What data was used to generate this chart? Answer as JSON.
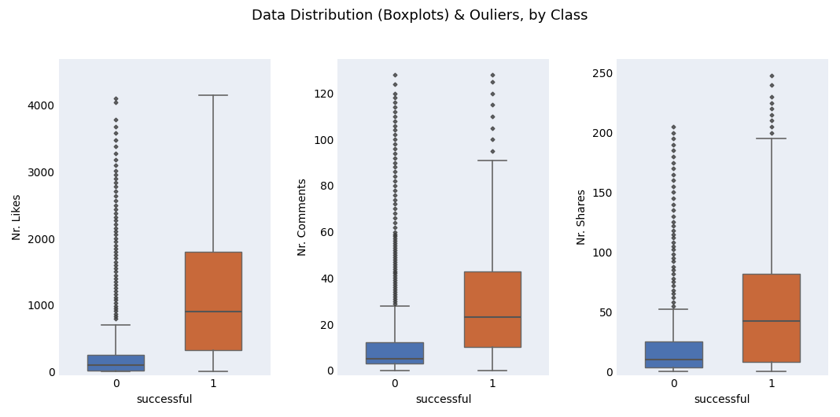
{
  "title": "Data Distribution (Boxplots) & Ouliers, by Class",
  "subplots": [
    {
      "ylabel": "Nr. Likes",
      "xlabel": "successful",
      "ylim": [
        -50,
        4700
      ],
      "yticks": [
        0,
        1000,
        2000,
        3000,
        4000
      ],
      "class0": {
        "q1": 20,
        "median": 100,
        "q3": 250,
        "whislo": 0,
        "whishi": 700,
        "fliers": [
          800,
          830,
          870,
          910,
          950,
          990,
          1030,
          1080,
          1120,
          1160,
          1210,
          1260,
          1300,
          1350,
          1400,
          1450,
          1500,
          1550,
          1600,
          1650,
          1700,
          1750,
          1800,
          1850,
          1900,
          1950,
          2000,
          2060,
          2110,
          2160,
          2210,
          2270,
          2320,
          2380,
          2440,
          2500,
          2570,
          2640,
          2710,
          2780,
          2840,
          2900,
          2960,
          3020,
          3100,
          3180,
          3280,
          3380,
          3480,
          3580,
          3680,
          3780,
          4050,
          4100
        ]
      },
      "class1": {
        "q1": 320,
        "median": 900,
        "q3": 1800,
        "whislo": 0,
        "whishi": 4150,
        "fliers": []
      }
    },
    {
      "ylabel": "Nr. Comments",
      "xlabel": "successful",
      "ylim": [
        -2,
        135
      ],
      "yticks": [
        0,
        20,
        40,
        60,
        80,
        100,
        120
      ],
      "class0": {
        "q1": 3,
        "median": 5,
        "q3": 12,
        "whislo": 0,
        "whishi": 28,
        "fliers": [
          29,
          30,
          31,
          32,
          33,
          34,
          35,
          36,
          37,
          38,
          39,
          40,
          41,
          42,
          43,
          44,
          45,
          46,
          47,
          48,
          49,
          50,
          51,
          52,
          53,
          54,
          55,
          56,
          57,
          58,
          59,
          60,
          62,
          64,
          66,
          68,
          70,
          72,
          74,
          76,
          78,
          80,
          82,
          84,
          86,
          88,
          90,
          92,
          94,
          96,
          98,
          100,
          102,
          104,
          106,
          108,
          110,
          112,
          114,
          116,
          118,
          120,
          124,
          128
        ]
      },
      "class1": {
        "q1": 10,
        "median": 23,
        "q3": 43,
        "whislo": 0,
        "whishi": 91,
        "fliers": [
          95,
          100,
          105,
          110,
          115,
          120,
          125,
          128
        ]
      }
    },
    {
      "ylabel": "Nr. Shares",
      "xlabel": "successful",
      "ylim": [
        -3,
        262
      ],
      "yticks": [
        0,
        50,
        100,
        150,
        200,
        250
      ],
      "class0": {
        "q1": 3,
        "median": 10,
        "q3": 25,
        "whislo": 0,
        "whishi": 52,
        "fliers": [
          55,
          58,
          62,
          65,
          68,
          72,
          75,
          78,
          82,
          85,
          88,
          92,
          95,
          98,
          102,
          105,
          108,
          112,
          115,
          118,
          122,
          125,
          130,
          135,
          140,
          145,
          150,
          155,
          160,
          165,
          170,
          175,
          180,
          185,
          190,
          195,
          200,
          205
        ]
      },
      "class1": {
        "q1": 8,
        "median": 42,
        "q3": 82,
        "whislo": 0,
        "whishi": 195,
        "fliers": [
          200,
          205,
          210,
          215,
          220,
          225,
          230,
          240,
          248
        ]
      }
    }
  ],
  "colors": {
    "class0": "#4c72b0",
    "class1": "#c8693a",
    "background": "#eaeef5",
    "figure_bg": "#ffffff",
    "flier_marker": "D",
    "flier_color": "#3a3a3a",
    "median_color": "#555555",
    "whisker_color": "#666666",
    "box_edge_color": "#666666"
  },
  "title_fontsize": 13,
  "label_fontsize": 10,
  "tick_fontsize": 10,
  "box_width": 0.35,
  "positions": [
    0.7,
    1.3
  ]
}
